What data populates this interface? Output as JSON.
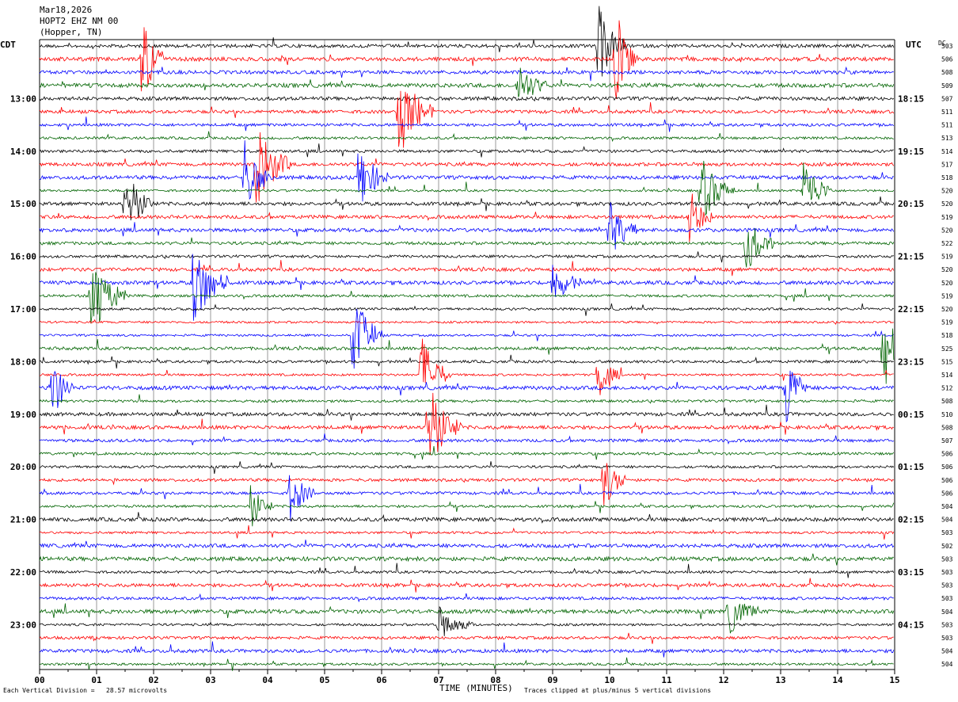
{
  "header": {
    "date": "Mar18,2026",
    "station": "HOPT2 EHZ NM 00",
    "location": "(Hopper, TN)"
  },
  "left_zone": "CDT",
  "right_zone": "UTC",
  "dc_label": "DC",
  "footer": {
    "scale_note": "Each Vertical Division =   28.57 microvolts",
    "clip_note": "Traces clipped at plus/minus 5 vertical divisions",
    "xaxis_title": "TIME (MINUTES)"
  },
  "colors": {
    "cycle": [
      "#000000",
      "#ff0000",
      "#0000ff",
      "#006400"
    ],
    "grid": "#000000"
  },
  "chart_data": {
    "type": "line",
    "title": "Mar18,2026 HOPT2 EHZ NM 00 (Hopper, TN)",
    "xlabel": "TIME (MINUTES)",
    "xlim": [
      0,
      15
    ],
    "x_ticks": [
      "00",
      "01",
      "02",
      "03",
      "04",
      "05",
      "06",
      "07",
      "08",
      "09",
      "10",
      "11",
      "12",
      "13",
      "14",
      "15"
    ],
    "trace_count": 48,
    "trace_minutes": 15,
    "left_ticks": [
      "13:00",
      "14:00",
      "15:00",
      "16:00",
      "17:00",
      "18:00",
      "19:00",
      "20:00",
      "21:00",
      "22:00",
      "23:00"
    ],
    "right_ticks": [
      "18:15",
      "19:15",
      "20:15",
      "21:15",
      "22:15",
      "23:15",
      "00:15",
      "01:15",
      "02:15",
      "03:15",
      "04:15"
    ],
    "dc_offsets": [
      "503",
      "506",
      "508",
      "509",
      "507",
      "511",
      "511",
      "513",
      "514",
      "517",
      "518",
      "520",
      "520",
      "519",
      "520",
      "522",
      "519",
      "520",
      "520",
      "519",
      "520",
      "519",
      "518",
      "525",
      "515",
      "514",
      "512",
      "508",
      "510",
      "508",
      "507",
      "506",
      "506",
      "506",
      "506",
      "504",
      "504",
      "503",
      "502",
      "503",
      "503",
      "503",
      "503",
      "504",
      "503",
      "503",
      "504",
      "504"
    ],
    "events": [
      {
        "trace": 1,
        "minute": 1.8,
        "amp": 4,
        "dur": 0.4
      },
      {
        "trace": 0,
        "minute": 9.8,
        "amp": 3.5,
        "dur": 0.5
      },
      {
        "trace": 1,
        "minute": 10.1,
        "amp": 4,
        "dur": 0.4
      },
      {
        "trace": 5,
        "minute": 6.3,
        "amp": 4,
        "dur": 0.6
      },
      {
        "trace": 3,
        "minute": 8.4,
        "amp": 2,
        "dur": 0.5
      },
      {
        "trace": 9,
        "minute": 3.8,
        "amp": 4,
        "dur": 0.6
      },
      {
        "trace": 10,
        "minute": 3.6,
        "amp": 3,
        "dur": 0.5
      },
      {
        "trace": 10,
        "minute": 5.6,
        "amp": 3,
        "dur": 0.5
      },
      {
        "trace": 12,
        "minute": 1.5,
        "amp": 3,
        "dur": 0.5
      },
      {
        "trace": 11,
        "minute": 11.6,
        "amp": 3,
        "dur": 0.6
      },
      {
        "trace": 13,
        "minute": 11.4,
        "amp": 2.5,
        "dur": 0.4
      },
      {
        "trace": 11,
        "minute": 13.4,
        "amp": 3,
        "dur": 0.5
      },
      {
        "trace": 14,
        "minute": 10.0,
        "amp": 2.5,
        "dur": 0.5
      },
      {
        "trace": 15,
        "minute": 12.4,
        "amp": 2.5,
        "dur": 0.5
      },
      {
        "trace": 18,
        "minute": 2.7,
        "amp": 4,
        "dur": 0.6
      },
      {
        "trace": 19,
        "minute": 0.9,
        "amp": 4,
        "dur": 0.6
      },
      {
        "trace": 18,
        "minute": 9.0,
        "amp": 2,
        "dur": 0.5
      },
      {
        "trace": 22,
        "minute": 5.5,
        "amp": 4,
        "dur": 0.5
      },
      {
        "trace": 23,
        "minute": 14.8,
        "amp": 4,
        "dur": 0.5
      },
      {
        "trace": 25,
        "minute": 6.7,
        "amp": 3.5,
        "dur": 0.5
      },
      {
        "trace": 26,
        "minute": 0.2,
        "amp": 3,
        "dur": 0.4
      },
      {
        "trace": 26,
        "minute": 13.1,
        "amp": 3,
        "dur": 0.4
      },
      {
        "trace": 29,
        "minute": 6.8,
        "amp": 4,
        "dur": 0.6
      },
      {
        "trace": 25,
        "minute": 9.8,
        "amp": 2,
        "dur": 0.4
      },
      {
        "trace": 33,
        "minute": 9.9,
        "amp": 2.5,
        "dur": 0.4
      },
      {
        "trace": 34,
        "minute": 4.4,
        "amp": 2.5,
        "dur": 0.4
      },
      {
        "trace": 35,
        "minute": 3.7,
        "amp": 2,
        "dur": 0.4
      },
      {
        "trace": 43,
        "minute": 12.1,
        "amp": 2,
        "dur": 0.5
      },
      {
        "trace": 44,
        "minute": 7.0,
        "amp": 1.5,
        "dur": 0.6
      }
    ]
  }
}
